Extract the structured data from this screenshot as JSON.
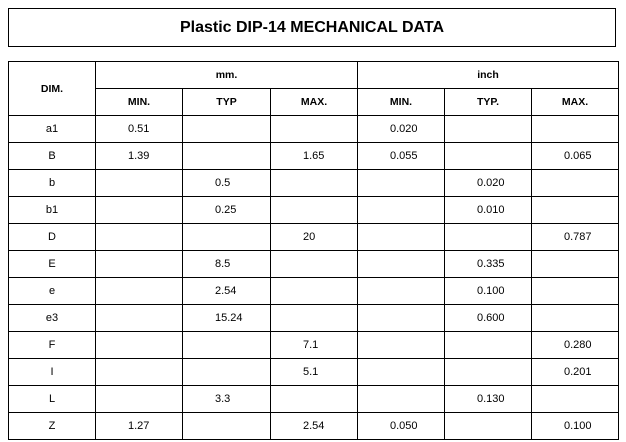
{
  "header": {
    "title": "Plastic DIP-14 MECHANICAL DATA"
  },
  "table": {
    "dim_header": "DIM.",
    "groups": [
      "mm.",
      "inch"
    ],
    "columns": [
      "MIN.",
      "TYP",
      "MAX.",
      "MIN.",
      "TYP.",
      "MAX."
    ],
    "rows": [
      [
        "a1",
        "0.51",
        null,
        null,
        "0.020",
        null,
        null
      ],
      [
        "B",
        "1.39",
        null,
        "1.65",
        "0.055",
        null,
        "0.065"
      ],
      [
        "b",
        null,
        "0.5",
        null,
        null,
        "0.020",
        null
      ],
      [
        "b1",
        null,
        "0.25",
        null,
        null,
        "0.010",
        null
      ],
      [
        "D",
        null,
        null,
        "20",
        null,
        null,
        "0.787"
      ],
      [
        "E",
        null,
        "8.5",
        null,
        null,
        "0.335",
        null
      ],
      [
        "e",
        null,
        "2.54",
        null,
        null,
        "0.100",
        null
      ],
      [
        "e3",
        null,
        "15.24",
        null,
        null,
        "0.600",
        null
      ],
      [
        "F",
        null,
        null,
        "7.1",
        null,
        null,
        "0.280"
      ],
      [
        "I",
        null,
        null,
        "5.1",
        null,
        null,
        "0.201"
      ],
      [
        "L",
        null,
        "3.3",
        null,
        null,
        "0.130",
        null
      ],
      [
        "Z",
        "1.27",
        null,
        "2.54",
        "0.050",
        null,
        "0.100"
      ]
    ]
  }
}
